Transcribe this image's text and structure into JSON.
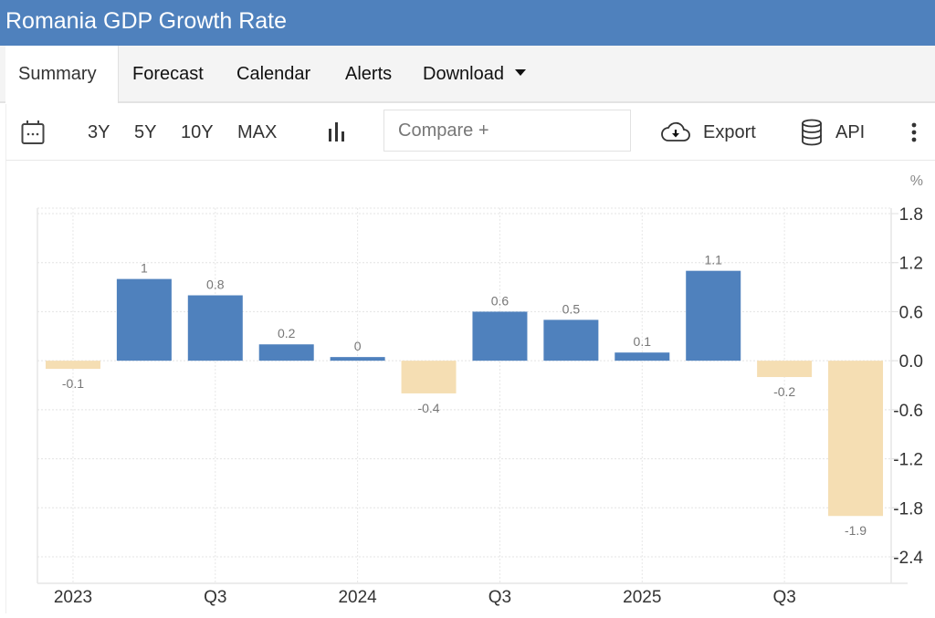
{
  "header": {
    "title": "Romania GDP Growth Rate"
  },
  "tabs": [
    {
      "label": "Summary",
      "active": true
    },
    {
      "label": "Forecast"
    },
    {
      "label": "Calendar"
    },
    {
      "label": "Alerts"
    },
    {
      "label": "Download",
      "has_dropdown": true
    }
  ],
  "toolbar": {
    "calendar_icon": "calendar-icon",
    "ranges": [
      "3Y",
      "5Y",
      "10Y",
      "MAX"
    ],
    "chart_type_icon": "bar-chart-icon",
    "compare_placeholder": "Compare +",
    "export_label": "Export",
    "export_icon": "cloud-download-icon",
    "api_label": "API",
    "api_icon": "database-icon",
    "more_icon": "more-vertical-icon"
  },
  "colors": {
    "brand": "#4f81bd",
    "positive_bar": "#4f81bd",
    "negative_bar": "#f5deb3"
  },
  "chart_data": {
    "type": "bar",
    "title": "Romania GDP Growth Rate",
    "ylabel": "%",
    "xlabel": "",
    "categories": [
      "2023 Q1",
      "2023 Q2",
      "2023 Q3",
      "2023 Q4",
      "2024 Q1",
      "2024 Q2",
      "2024 Q3",
      "2024 Q4",
      "2025 Q1",
      "2025 Q2",
      "2025 Q3",
      "2025 Q4"
    ],
    "values": [
      -0.1,
      1,
      0.8,
      0.2,
      0,
      -0.4,
      0.6,
      0.5,
      0.1,
      1.1,
      -0.2,
      -1.9
    ],
    "data_labels": [
      "-0.1",
      "1",
      "0.8",
      "0.2",
      "0",
      "-0.4",
      "0.6",
      "0.5",
      "0.1",
      "1.1",
      "-0.2",
      "-1.9"
    ],
    "x_tick_labels": [
      {
        "index": 0,
        "label": "2023"
      },
      {
        "index": 2,
        "label": "Q3"
      },
      {
        "index": 4,
        "label": "2024"
      },
      {
        "index": 6,
        "label": "Q3"
      },
      {
        "index": 8,
        "label": "2025"
      },
      {
        "index": 10,
        "label": "Q3"
      }
    ],
    "y_ticks": [
      "1.8",
      "1.2",
      "0.6",
      "0.0",
      "-0.6",
      "-1.2",
      "-1.8",
      "-2.4"
    ],
    "y_tick_values": [
      1.8,
      1.2,
      0.6,
      0.0,
      -0.6,
      -1.2,
      -1.8,
      -2.4
    ],
    "ylim": [
      -2.4,
      1.8
    ],
    "y_axis_position": "right",
    "grid": true,
    "legend": "none"
  }
}
